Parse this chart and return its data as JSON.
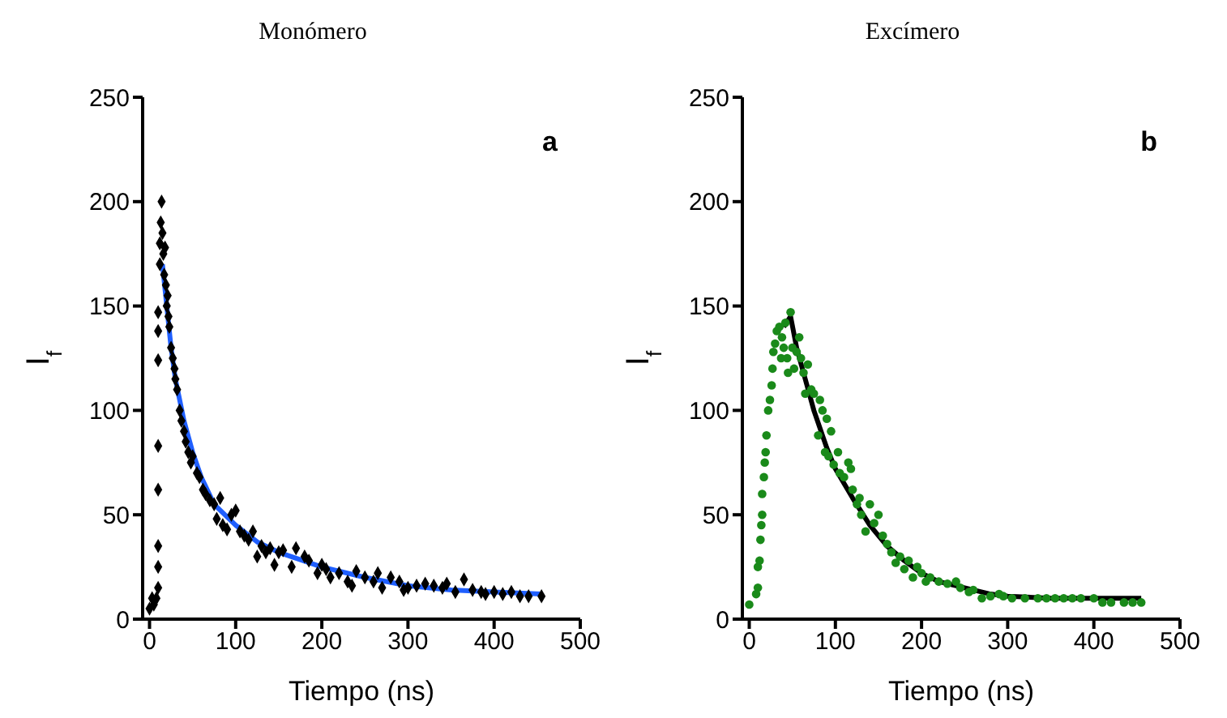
{
  "chart_data": [
    {
      "type": "scatter",
      "title": "Monómero",
      "xlabel": "Tiempo (ns)",
      "ylabel": "I$_{f}$",
      "xlim": [
        -8,
        500
      ],
      "xticks": [
        0,
        100,
        200,
        300,
        400,
        500
      ],
      "ylim": [
        0,
        250
      ],
      "yticks": [
        0,
        50,
        100,
        150,
        200,
        250
      ],
      "annotations": [
        "a"
      ],
      "series": [
        {
          "type": "scatter",
          "marker": "diamond",
          "color": "#000000",
          "x": [
            0,
            3,
            5,
            8,
            10,
            10,
            10,
            10,
            10,
            10,
            10,
            10,
            12,
            12,
            13,
            14,
            15,
            16,
            17,
            18,
            19,
            20,
            21,
            22,
            23,
            25,
            27,
            29,
            30,
            32,
            35,
            37,
            40,
            42,
            45,
            48,
            50,
            55,
            58,
            62,
            65,
            70,
            75,
            78,
            82,
            85,
            90,
            95,
            100,
            105,
            110,
            115,
            120,
            125,
            130,
            135,
            140,
            145,
            150,
            155,
            165,
            170,
            180,
            185,
            195,
            200,
            205,
            210,
            220,
            230,
            235,
            240,
            250,
            260,
            265,
            270,
            280,
            290,
            295,
            300,
            310,
            320,
            330,
            340,
            345,
            355,
            365,
            375,
            385,
            390,
            400,
            410,
            420,
            430,
            440,
            455
          ],
          "values": [
            5,
            10,
            7,
            10,
            15,
            25,
            35,
            62,
            83,
            124,
            138,
            147,
            170,
            180,
            190,
            200,
            185,
            175,
            165,
            178,
            160,
            150,
            155,
            145,
            140,
            130,
            125,
            120,
            115,
            110,
            100,
            95,
            90,
            85,
            80,
            75,
            78,
            70,
            68,
            62,
            60,
            57,
            55,
            48,
            58,
            45,
            43,
            50,
            52,
            42,
            40,
            38,
            42,
            30,
            35,
            32,
            34,
            26,
            32,
            33,
            25,
            34,
            30,
            28,
            22,
            26,
            24,
            20,
            22,
            18,
            16,
            23,
            20,
            18,
            22,
            15,
            20,
            18,
            14,
            15,
            16,
            17,
            16,
            15,
            17,
            13,
            19,
            14,
            13,
            12,
            13,
            12,
            13,
            11,
            11,
            11
          ]
        },
        {
          "type": "line",
          "marker": "none",
          "color": "#1f5fff",
          "x": [
            15,
            20,
            25,
            30,
            40,
            50,
            60,
            75,
            100,
            125,
            150,
            200,
            250,
            300,
            350,
            400,
            455
          ],
          "values": [
            170,
            150,
            130,
            115,
            95,
            80,
            68,
            55,
            45,
            37,
            32,
            25,
            20,
            16,
            14,
            13,
            12
          ]
        }
      ]
    },
    {
      "type": "scatter",
      "title": "Excímero",
      "xlabel": "Tiempo (ns)",
      "ylabel": "I$_{f}$",
      "xlim": [
        -8,
        500
      ],
      "xticks": [
        0,
        100,
        200,
        300,
        400,
        500
      ],
      "ylim": [
        0,
        250
      ],
      "yticks": [
        0,
        50,
        100,
        150,
        200,
        250
      ],
      "annotations": [
        "b"
      ],
      "series": [
        {
          "type": "line",
          "marker": "none",
          "color": "#000000",
          "x": [
            40,
            48,
            55,
            65,
            75,
            90,
            100,
            120,
            140,
            160,
            180,
            200,
            220,
            250,
            280,
            300,
            350,
            400,
            455
          ],
          "values": [
            140,
            145,
            130,
            115,
            100,
            82,
            72,
            58,
            45,
            35,
            28,
            22,
            18,
            15,
            12,
            11,
            10,
            10,
            10
          ]
        },
        {
          "type": "scatter",
          "marker": "circle",
          "color": "#1a8a1a",
          "x": [
            0,
            8,
            10,
            10,
            12,
            13,
            14,
            15,
            15,
            17,
            18,
            19,
            20,
            22,
            24,
            26,
            27,
            28,
            30,
            32,
            35,
            37,
            38,
            40,
            42,
            44,
            45,
            48,
            50,
            52,
            55,
            58,
            60,
            63,
            65,
            68,
            72,
            75,
            80,
            82,
            85,
            88,
            90,
            92,
            95,
            98,
            103,
            105,
            110,
            115,
            118,
            120,
            125,
            128,
            130,
            135,
            140,
            145,
            150,
            155,
            160,
            165,
            170,
            175,
            180,
            185,
            190,
            195,
            200,
            205,
            210,
            220,
            230,
            240,
            245,
            255,
            260,
            270,
            280,
            290,
            295,
            305,
            320,
            335,
            345,
            355,
            365,
            375,
            385,
            400,
            410,
            420,
            435,
            445,
            455
          ],
          "values": [
            7,
            12,
            15,
            25,
            28,
            38,
            45,
            50,
            60,
            68,
            75,
            80,
            88,
            100,
            105,
            112,
            120,
            128,
            132,
            138,
            140,
            125,
            135,
            130,
            142,
            125,
            118,
            147,
            130,
            120,
            128,
            135,
            125,
            118,
            108,
            122,
            110,
            108,
            88,
            105,
            100,
            80,
            96,
            78,
            90,
            74,
            80,
            70,
            68,
            75,
            72,
            62,
            55,
            58,
            50,
            42,
            55,
            46,
            50,
            40,
            36,
            32,
            27,
            30,
            24,
            28,
            20,
            25,
            22,
            18,
            20,
            18,
            17,
            18,
            15,
            13,
            14,
            10,
            11,
            12,
            11,
            10,
            10,
            10,
            10,
            10,
            10,
            10,
            10,
            10,
            8,
            8,
            8,
            8,
            8
          ]
        }
      ]
    }
  ]
}
